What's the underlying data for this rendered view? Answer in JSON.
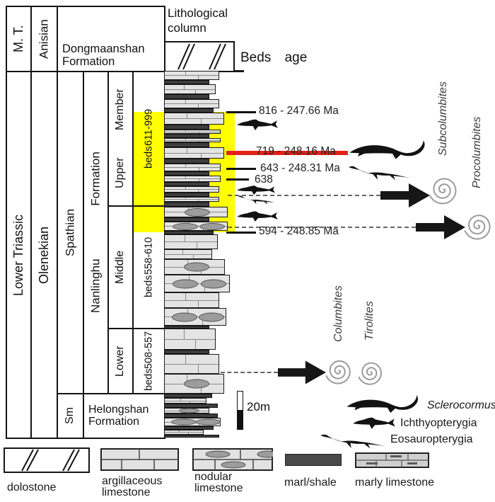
{
  "colors": {
    "highlight": "#ffff00",
    "marker_line": "#e32119",
    "limestone_fill": "#e4e4e4",
    "marl_fill": "#3e3e3e",
    "nodule_fill": "#9c9c9c"
  },
  "header": {
    "lith_col_line1": "Lithological",
    "lith_col_line2": "column",
    "beds_age": "Beds age"
  },
  "chrono": {
    "mt": "M. T.",
    "anisian": "Anisian",
    "lower_triassic": "Lower Triassic",
    "olenekian": "Olenekian",
    "spathian": "Spathian",
    "smithian": "Sm"
  },
  "lithostrat": {
    "dongmaanshan_l1": "Dongmaanshan",
    "dongmaanshan_l2": "Formation",
    "nanlinghu": "Nanlinghu Formation",
    "helongshan_l1": "Helongshan",
    "helongshan_l2": "Formation"
  },
  "members": {
    "upper": {
      "label": "Upper Member",
      "beds_l1": "beds",
      "beds_l2": "611-999"
    },
    "middle": {
      "label": "Middle",
      "beds_l1": "beds",
      "beds_l2": "558-610"
    },
    "lower": {
      "label": "Lower",
      "beds_l1": "beds",
      "beds_l2": "508-557"
    }
  },
  "ages": [
    {
      "bed": "816",
      "label": "816 - 247.66 Ma",
      "highlighted": false
    },
    {
      "bed": "719",
      "label": "719 - 248.16 Ma",
      "highlighted": true
    },
    {
      "bed": "643",
      "label": "643 - 248.31 Ma",
      "highlighted": false
    },
    {
      "bed": "638",
      "label": "638",
      "highlighted": false
    },
    {
      "bed": "594",
      "label": "594 - 248.85 Ma",
      "highlighted": false
    }
  ],
  "ammonite_zones": [
    {
      "label": "Subcolumbites"
    },
    {
      "label": "Procolumbites"
    },
    {
      "label": "Columbites"
    },
    {
      "label": "Tirolites"
    }
  ],
  "fauna_legend": [
    {
      "label": "Sclerocormus",
      "italic": true
    },
    {
      "label": "Ichthyopterygia",
      "italic": false
    },
    {
      "label": "Eosauropterygia",
      "italic": false
    }
  ],
  "scale": {
    "label": "20m"
  },
  "lith_legend": [
    {
      "type": "dolostone",
      "label_l1": "dolostone",
      "label_l2": ""
    },
    {
      "type": "argillaceous",
      "label_l1": "argillaceous",
      "label_l2": "limestone"
    },
    {
      "type": "nodular",
      "label_l1": "nodular",
      "label_l2": "limestone"
    },
    {
      "type": "marl",
      "label_l1": "marl/shale",
      "label_l2": ""
    },
    {
      "type": "marly",
      "label_l1": "marly limestone",
      "label_l2": ""
    }
  ],
  "column_beds": [
    [
      100,
      13,
      "ls",
      78
    ],
    [
      113,
      6,
      "marl",
      64
    ],
    [
      119,
      14,
      "ls",
      73
    ],
    [
      133,
      7,
      "marl",
      64
    ],
    [
      140,
      13,
      "ls",
      78
    ],
    [
      153,
      6,
      "marl",
      70
    ],
    [
      159,
      17,
      "ls",
      85
    ],
    [
      176,
      7,
      "marl",
      64
    ],
    [
      183,
      6,
      "ls",
      80
    ],
    [
      189,
      6,
      "marl",
      64
    ],
    [
      195,
      6,
      "ls",
      80
    ],
    [
      201,
      7,
      "marl",
      64
    ],
    [
      208,
      16,
      "ls",
      85
    ],
    [
      224,
      7,
      "marl",
      64
    ],
    [
      231,
      11,
      "ls",
      80
    ],
    [
      242,
      6,
      "marl",
      64
    ],
    [
      248,
      9,
      "ls",
      80
    ],
    [
      257,
      6,
      "marl",
      64
    ],
    [
      263,
      9,
      "ls",
      78
    ],
    [
      272,
      6,
      "marl",
      64
    ],
    [
      278,
      7,
      "ls",
      78
    ],
    [
      285,
      7,
      "marl",
      64
    ],
    [
      292,
      15,
      "n1",
      90
    ],
    [
      307,
      6,
      "marl",
      64
    ],
    [
      313,
      13,
      "n2",
      90
    ],
    [
      326,
      5,
      "marl",
      70
    ],
    [
      331,
      21,
      "ls",
      76
    ],
    [
      352,
      14,
      "ls",
      68
    ],
    [
      366,
      22,
      "n1",
      86
    ],
    [
      388,
      25,
      "n2",
      93
    ],
    [
      413,
      22,
      "ls",
      78
    ],
    [
      435,
      25,
      "n2",
      88
    ],
    [
      460,
      4,
      "marl",
      64
    ],
    [
      464,
      30,
      "ls",
      73
    ],
    [
      494,
      6,
      "marl",
      64
    ],
    [
      500,
      28,
      "ls",
      78
    ],
    [
      528,
      28,
      "n1",
      85
    ],
    [
      556,
      6,
      "marl",
      68
    ],
    [
      562,
      8,
      "ls",
      60
    ],
    [
      570,
      6,
      "marl",
      76
    ],
    [
      576,
      8,
      "n1",
      64
    ],
    [
      584,
      6,
      "marl",
      76
    ],
    [
      590,
      12,
      "n2",
      80
    ],
    [
      602,
      5,
      "marl",
      70
    ],
    [
      607,
      7,
      "ls",
      56
    ],
    [
      614,
      4,
      "marl",
      78
    ]
  ]
}
